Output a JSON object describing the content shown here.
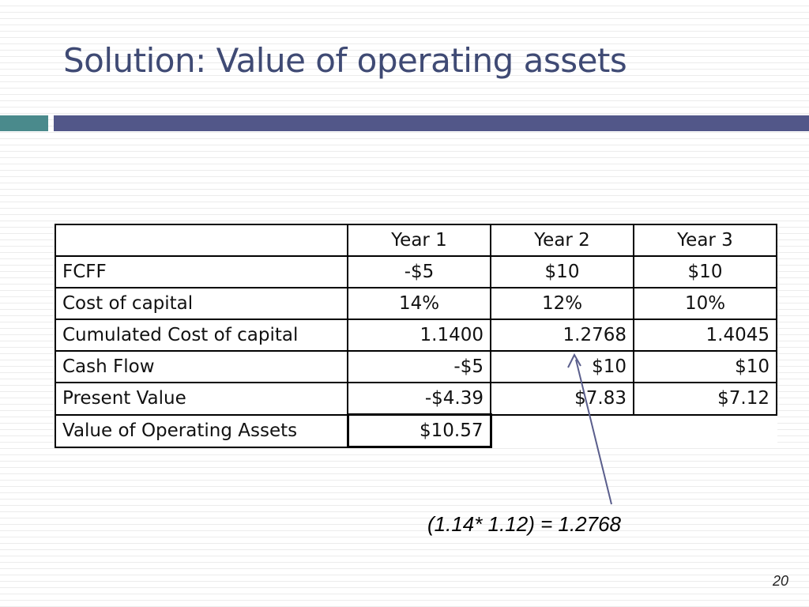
{
  "slide": {
    "title": "Solution: Value of operating assets",
    "page_number": "20",
    "formula_note": "(1.14* 1.12) = 1.2768"
  },
  "table": {
    "header": [
      "",
      "Year 1",
      "Year 2",
      "Year 3"
    ],
    "rows": [
      {
        "label": "FCFF",
        "values": [
          "-$5",
          "$10",
          "$10"
        ]
      },
      {
        "label": "Cost of capital",
        "values": [
          "14%",
          "12%",
          "10%"
        ]
      },
      {
        "label": "Cumulated Cost of capital",
        "values": [
          "1.1400",
          "1.2768",
          "1.4045"
        ]
      },
      {
        "label": "Cash Flow",
        "values": [
          "-$5",
          "$10",
          "$10"
        ]
      },
      {
        "label": "Present Value",
        "values": [
          "-$4.39",
          "$7.83",
          "$7.12"
        ]
      },
      {
        "label": "Value of Operating Assets",
        "values": [
          "$10.57"
        ]
      }
    ]
  },
  "colors": {
    "title": "#3f4a74",
    "accent_bar": "#525789",
    "accent_teal": "#4a8a8c",
    "arrow": "#5a5e8c"
  }
}
